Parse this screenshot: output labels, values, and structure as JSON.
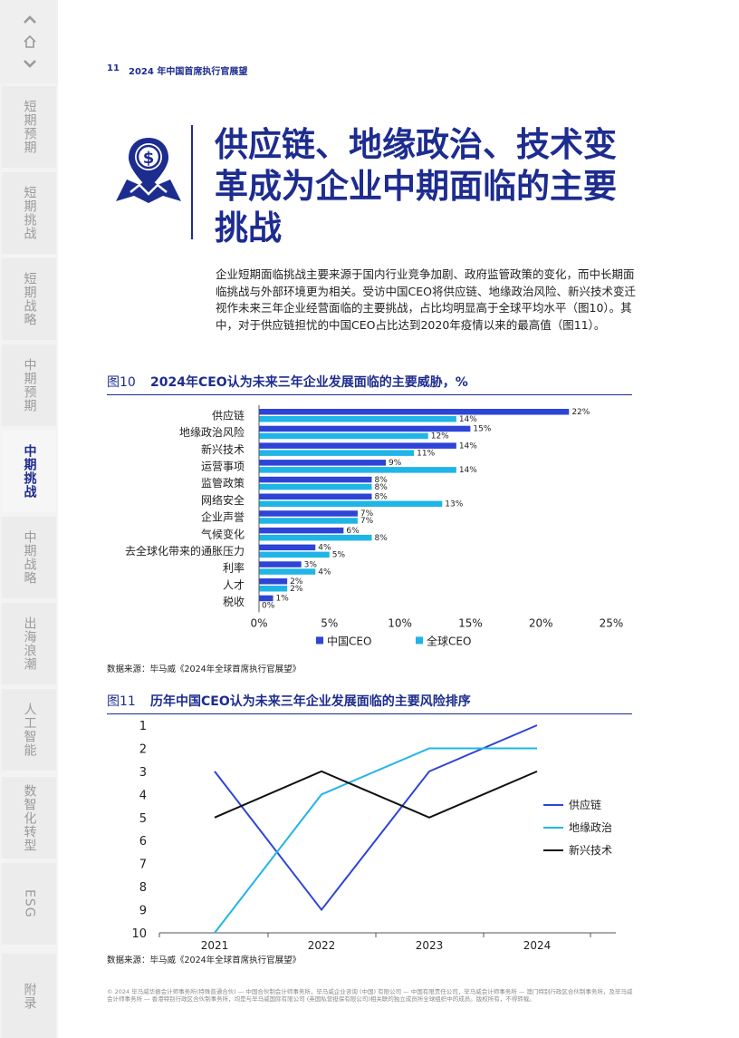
{
  "nav": {
    "tabs": [
      {
        "label": "短期预期",
        "active": false
      },
      {
        "label": "短期挑战",
        "active": false
      },
      {
        "label": "短期战略",
        "active": false
      },
      {
        "label": "中期预期",
        "active": false
      },
      {
        "label": "中期挑战",
        "active": true
      },
      {
        "label": "中期战略",
        "active": false
      },
      {
        "label": "出海浪潮",
        "active": false
      },
      {
        "label": "人工智能",
        "active": false
      },
      {
        "label": "数智化转型",
        "active": false
      },
      {
        "label": "ESG",
        "active": false
      },
      {
        "label": "附录",
        "active": false
      }
    ]
  },
  "header": {
    "page_number": "11",
    "running_title": "2024 年中国首席执行官展望"
  },
  "title": {
    "text": "供应链、地缘政治、技术变革成为企业中期面临的主要挑战",
    "icon": "dollar-map-pin-icon"
  },
  "intro": "企业短期面临挑战主要来源于国内行业竞争加剧、政府监管政策的变化，而中长期面临挑战与外部环境更为相关。受访中国CEO将供应链、地缘政治风险、新兴技术变迁视作未来三年企业经营面临的主要挑战，占比均明显高于全球平均水平（图10）。其中，对于供应链担忧的中国CEO占比达到2020年疫情以来的最高值（图11）。",
  "colors": {
    "brand": "#1d2c8f",
    "china": "#2e44d6",
    "global": "#1fb5e6",
    "tech": "#111111"
  },
  "figure10": {
    "label": "图10",
    "title": "2024年CEO认为未来三年企业发展面临的主要威胁，%",
    "source": "数据来源：毕马威《2024年全球首席执行官展望》"
  },
  "figure11": {
    "label": "图11",
    "title": "历年中国CEO认为未来三年企业发展面临的主要风险排序",
    "source": "数据来源：毕马威《2024年全球首席执行官展望》"
  },
  "legal": "© 2024 毕马威华振会计师事务所(特殊普通合伙) — 中国合伙制会计师事务所，毕马威企业咨询 (中国) 有限公司 — 中国有限责任公司，毕马威会计师事务所 — 澳门特别行政区合伙制事务所，及毕马威会计师事务所 — 香港特别行政区合伙制事务所，均是与毕马威国际有限公司 (英国私营担保有限公司)相关联的独立成员所全球组织中的成员。版权所有，不得转载。",
  "chart_data": [
    {
      "type": "bar",
      "orientation": "horizontal",
      "categories": [
        "供应链",
        "地缘政治风险",
        "新兴技术",
        "运营事项",
        "监管政策",
        "网络安全",
        "企业声誉",
        "气候变化",
        "去全球化带来的通胀压力",
        "利率",
        "人才",
        "税收"
      ],
      "series": [
        {
          "name": "中国CEO",
          "values": [
            22,
            15,
            14,
            9,
            8,
            8,
            7,
            6,
            4,
            3,
            2,
            1
          ]
        },
        {
          "name": "全球CEO",
          "values": [
            14,
            12,
            11,
            14,
            8,
            13,
            7,
            8,
            5,
            4,
            2,
            0
          ]
        }
      ],
      "xlim": [
        0,
        25
      ],
      "xticks": [
        "0%",
        "5%",
        "10%",
        "15%",
        "20%",
        "25%"
      ],
      "value_suffix": "%",
      "legend": "bottom",
      "grid": false
    },
    {
      "type": "line",
      "x": [
        "2021",
        "2022",
        "2023",
        "2024"
      ],
      "series": [
        {
          "name": "供应链",
          "values": [
            3,
            9,
            3,
            1
          ]
        },
        {
          "name": "地缘政治",
          "values": [
            10,
            4,
            2,
            2
          ]
        },
        {
          "name": "新兴技术",
          "values": [
            5,
            3,
            5,
            3
          ]
        }
      ],
      "ylim": [
        1,
        10
      ],
      "y_reversed": true,
      "yticks": [
        "1",
        "2",
        "3",
        "4",
        "5",
        "6",
        "7",
        "8",
        "9",
        "10"
      ],
      "legend": "right",
      "grid": false
    }
  ]
}
